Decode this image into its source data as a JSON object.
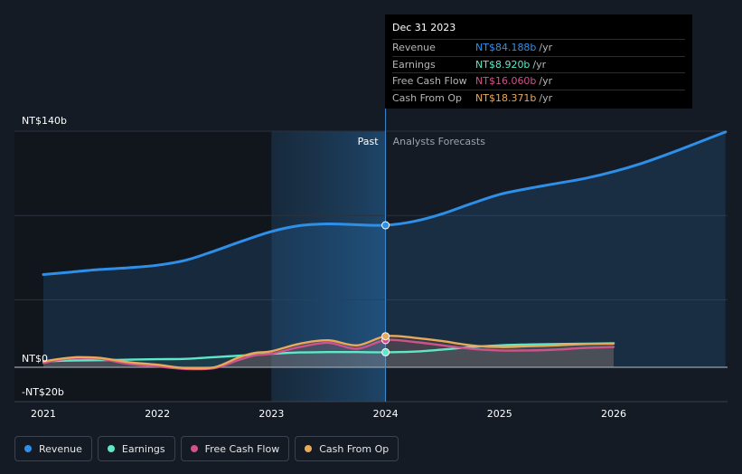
{
  "tooltip": {
    "date": "Dec 31 2023",
    "rows": [
      {
        "label": "Revenue",
        "value": "NT$84.188b",
        "unit": "/yr",
        "color": "#2f8fe8"
      },
      {
        "label": "Earnings",
        "value": "NT$8.920b",
        "unit": "/yr",
        "color": "#5ee8c8"
      },
      {
        "label": "Free Cash Flow",
        "value": "NT$16.060b",
        "unit": "/yr",
        "color": "#d0528a"
      },
      {
        "label": "Cash From Op",
        "value": "NT$18.371b",
        "unit": "/yr",
        "color": "#e8a95a"
      }
    ]
  },
  "legend": [
    {
      "label": "Revenue",
      "color": "#2f8fe8"
    },
    {
      "label": "Earnings",
      "color": "#5ee8c8"
    },
    {
      "label": "Free Cash Flow",
      "color": "#d0528a"
    },
    {
      "label": "Cash From Op",
      "color": "#e8a95a"
    }
  ],
  "chart_data": {
    "type": "area",
    "y_tick_labels": [
      "NT$140b",
      "NT$0",
      "-NT$20b"
    ],
    "ylim": [
      -20,
      140
    ],
    "x_tick_labels": [
      "2021",
      "2022",
      "2023",
      "2024",
      "2025",
      "2026"
    ],
    "xlim": [
      2020.78,
      2026.98
    ],
    "divider_x": 2024.0,
    "past_label": "Past",
    "forecast_label": "Analysts Forecasts",
    "highlight_x": 2024.0,
    "series": [
      {
        "name": "Revenue",
        "color": "#2f8fe8",
        "x": [
          2021.0,
          2021.25,
          2021.5,
          2021.75,
          2022.0,
          2022.25,
          2022.5,
          2022.75,
          2023.0,
          2023.25,
          2023.5,
          2023.75,
          2024.0,
          2024.25,
          2024.5,
          2024.75,
          2025.0,
          2025.25,
          2025.5,
          2025.75,
          2026.0,
          2026.25,
          2026.5,
          2026.75,
          2026.98
        ],
        "values": [
          55.0,
          56.5,
          58.0,
          59.0,
          60.5,
          63.5,
          69.0,
          75.0,
          80.5,
          84.0,
          85.0,
          84.5,
          84.2,
          86.5,
          91.0,
          97.0,
          102.5,
          106.0,
          109.0,
          112.0,
          116.0,
          121.0,
          127.0,
          133.5,
          139.5
        ]
      },
      {
        "name": "Earnings",
        "color": "#5ee8c8",
        "x": [
          2021.0,
          2021.25,
          2021.5,
          2021.75,
          2022.0,
          2022.25,
          2022.5,
          2022.75,
          2023.0,
          2023.25,
          2023.5,
          2023.75,
          2024.0,
          2024.25,
          2024.5,
          2024.75,
          2025.0,
          2025.25,
          2025.5,
          2025.75,
          2026.0
        ],
        "values": [
          3.5,
          4.0,
          4.2,
          4.5,
          4.8,
          5.0,
          6.0,
          7.0,
          8.0,
          8.8,
          9.0,
          9.0,
          8.9,
          9.3,
          10.5,
          12.0,
          13.0,
          13.5,
          13.8,
          14.0,
          14.2
        ]
      },
      {
        "name": "Free Cash Flow",
        "color": "#d0528a",
        "x": [
          2021.0,
          2021.15,
          2021.3,
          2021.5,
          2021.75,
          2022.0,
          2022.25,
          2022.5,
          2022.7,
          2022.85,
          2023.0,
          2023.25,
          2023.5,
          2023.75,
          2024.0,
          2024.25,
          2024.5,
          2024.75,
          2025.0,
          2025.25,
          2025.5,
          2025.75,
          2026.0
        ],
        "values": [
          2.5,
          4.5,
          5.5,
          5.0,
          2.0,
          0.5,
          -1.0,
          -0.5,
          4.0,
          7.0,
          8.0,
          12.0,
          14.5,
          11.0,
          16.1,
          15.0,
          13.0,
          11.0,
          10.0,
          10.0,
          10.5,
          11.5,
          12.0
        ]
      },
      {
        "name": "Cash From Op",
        "color": "#e8a95a",
        "x": [
          2021.0,
          2021.15,
          2021.3,
          2021.5,
          2021.75,
          2022.0,
          2022.25,
          2022.5,
          2022.7,
          2022.85,
          2023.0,
          2023.25,
          2023.5,
          2023.75,
          2024.0,
          2024.25,
          2024.5,
          2024.75,
          2025.0,
          2025.25,
          2025.5,
          2025.75,
          2026.0
        ],
        "values": [
          3.5,
          5.0,
          6.0,
          5.5,
          3.0,
          1.5,
          -0.5,
          0.0,
          5.5,
          8.5,
          9.5,
          14.0,
          16.0,
          13.0,
          18.4,
          17.5,
          15.5,
          13.0,
          12.0,
          12.5,
          13.0,
          13.8,
          14.0
        ]
      }
    ]
  }
}
